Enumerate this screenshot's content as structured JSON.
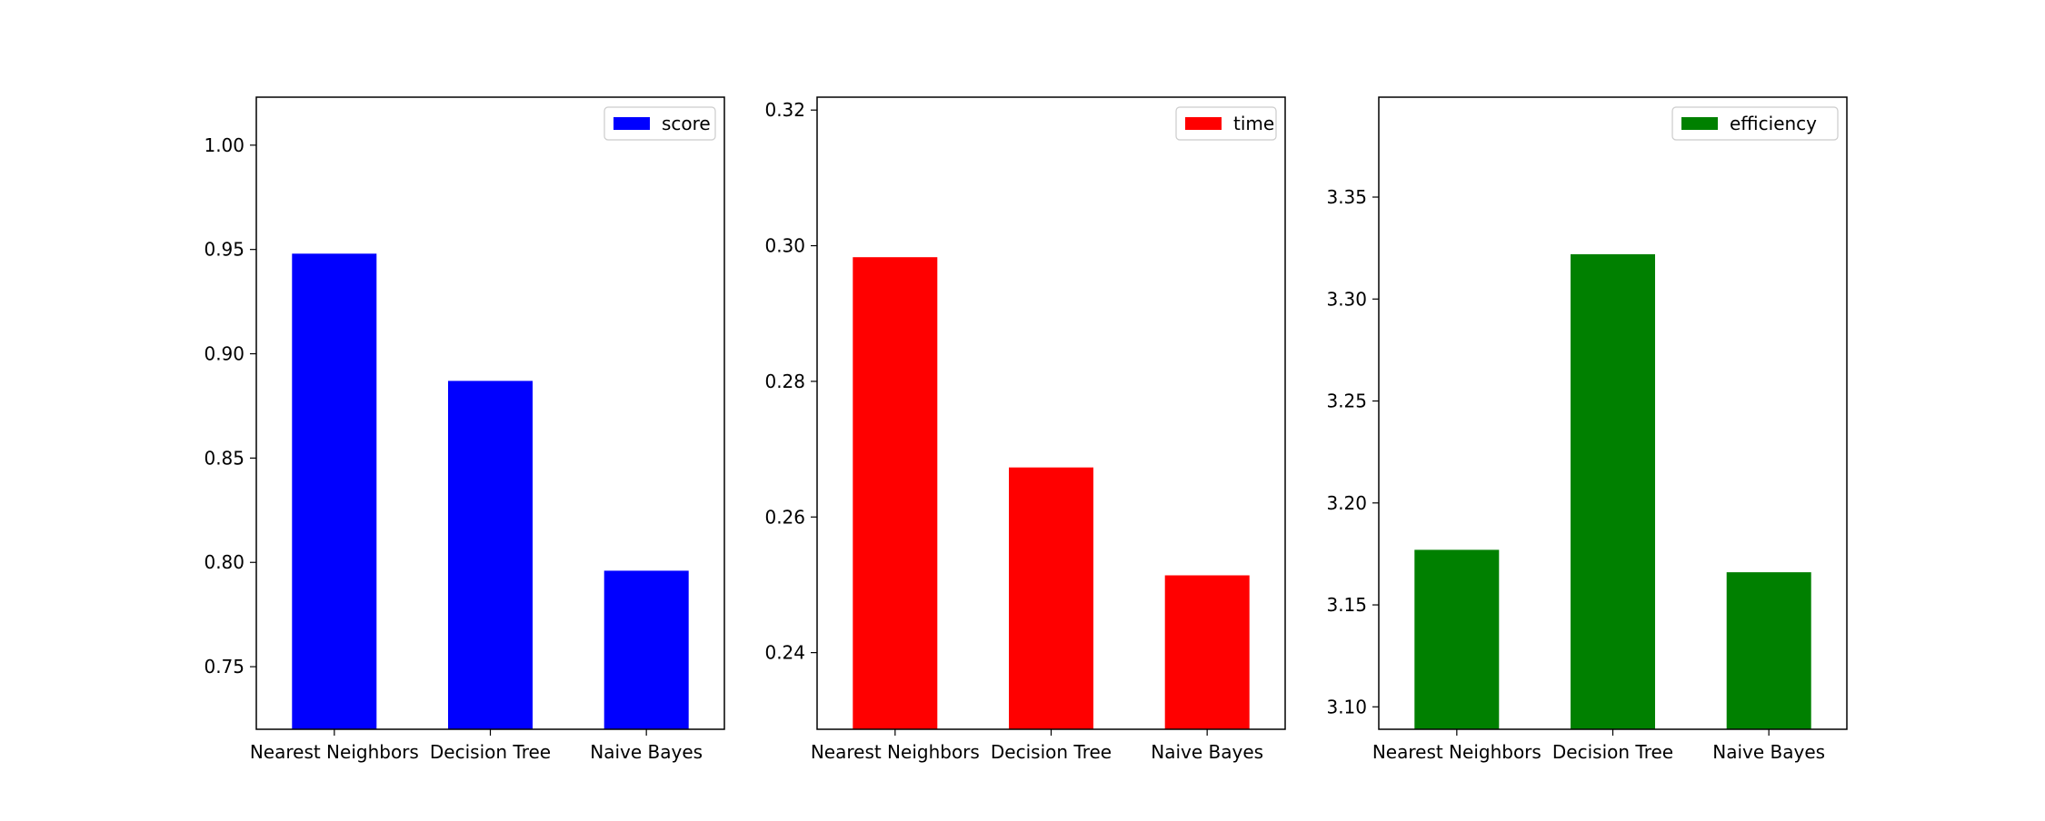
{
  "chart_data": [
    {
      "type": "bar",
      "categories": [
        "Nearest Neighbors",
        "Decision Tree",
        "Naive Bayes"
      ],
      "series": [
        {
          "name": "score",
          "values": [
            0.948,
            0.887,
            0.796
          ],
          "color": "#0000ff"
        }
      ],
      "ylim": [
        0.72,
        1.023
      ],
      "yticks": [
        0.75,
        0.8,
        0.85,
        0.9,
        0.95,
        1.0
      ],
      "ytick_labels": [
        "0.75",
        "0.80",
        "0.85",
        "0.90",
        "0.95",
        "1.00"
      ],
      "legend": "top-right",
      "grid": false
    },
    {
      "type": "bar",
      "categories": [
        "Nearest Neighbors",
        "Decision Tree",
        "Naive Bayes"
      ],
      "series": [
        {
          "name": "time",
          "values": [
            0.2983,
            0.2673,
            0.2514
          ],
          "color": "#ff0000"
        }
      ],
      "ylim": [
        0.2287,
        0.3219
      ],
      "yticks": [
        0.24,
        0.26,
        0.28,
        0.3,
        0.32
      ],
      "ytick_labels": [
        "0.24",
        "0.26",
        "0.28",
        "0.30",
        "0.32"
      ],
      "legend": "top-right",
      "grid": false
    },
    {
      "type": "bar",
      "categories": [
        "Nearest Neighbors",
        "Decision Tree",
        "Naive Bayes"
      ],
      "series": [
        {
          "name": "efficiency",
          "values": [
            3.177,
            3.322,
            3.166
          ],
          "color": "#008000"
        }
      ],
      "ylim": [
        3.089,
        3.399
      ],
      "yticks": [
        3.1,
        3.15,
        3.2,
        3.25,
        3.3,
        3.35
      ],
      "ytick_labels": [
        "3.10",
        "3.15",
        "3.20",
        "3.25",
        "3.30",
        "3.35"
      ],
      "legend": "top-right",
      "grid": false
    }
  ]
}
